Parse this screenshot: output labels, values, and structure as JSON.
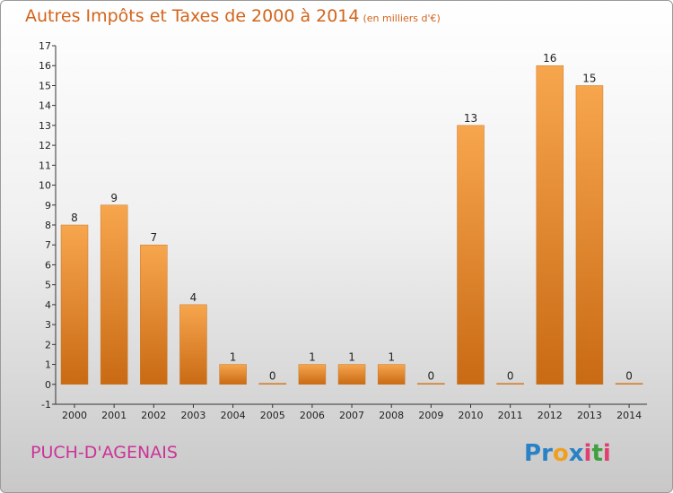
{
  "title": "Autres Impôts et Taxes de 2000 à 2014",
  "unit_label": "(en milliers d'€)",
  "commune": "PUCH-D'AGENAIS",
  "brand": {
    "letters": [
      "P",
      "r",
      "o",
      "x",
      "i",
      "t",
      "i"
    ],
    "colors": [
      "#2a82c6",
      "#2a82c6",
      "#f0a020",
      "#2a82c6",
      "#e04070",
      "#40a040",
      "#e04070"
    ]
  },
  "colors": {
    "bar_light": "#f7a64e",
    "bar_dark": "#c96a14",
    "title": "#d2641b",
    "commune": "#cc3399"
  },
  "chart_data": {
    "type": "bar",
    "title": "Autres Impôts et Taxes de 2000 à 2014",
    "ylabel": "",
    "xlabel": "",
    "categories": [
      "2000",
      "2001",
      "2002",
      "2003",
      "2004",
      "2005",
      "2006",
      "2007",
      "2008",
      "2009",
      "2010",
      "2011",
      "2012",
      "2013",
      "2014"
    ],
    "values": [
      8,
      9,
      7,
      4,
      1,
      0,
      1,
      1,
      1,
      0,
      13,
      0,
      16,
      15,
      0
    ],
    "ylim": [
      -1,
      17
    ],
    "yticks": [
      "-1",
      "0",
      "1",
      "2",
      "3",
      "4",
      "5",
      "6",
      "7",
      "8",
      "9",
      "10",
      "11",
      "12",
      "13",
      "14",
      "15",
      "16",
      "17"
    ],
    "grid": false,
    "legend": "none"
  }
}
